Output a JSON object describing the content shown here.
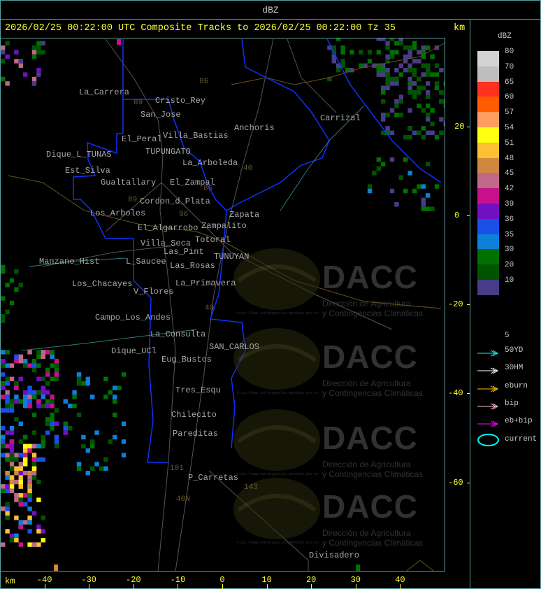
{
  "window_title": "dBZ",
  "header": {
    "title": "2026/02/25 00:22:00 UTC Composite Tracks to 2026/02/25 00:22:00 Tz 35",
    "unit_top": "km",
    "unit_bottom": "km"
  },
  "axes": {
    "x_ticks": [
      "-40",
      "-30",
      "-20",
      "-10",
      "0",
      "10",
      "20",
      "30",
      "40"
    ],
    "y_ticks": [
      "20",
      "0",
      "-20",
      "-40",
      "-60"
    ]
  },
  "legend": {
    "title": "dBZ",
    "scale": [
      {
        "label": "80",
        "color": "#d3d3d3"
      },
      {
        "label": "70",
        "color": "#bebebe"
      },
      {
        "label": "65",
        "color": "#ff3020"
      },
      {
        "label": "60",
        "color": "#ff5c00"
      },
      {
        "label": "57",
        "color": "#ff9c60"
      },
      {
        "label": "54",
        "color": "#ffff10"
      },
      {
        "label": "51",
        "color": "#fcc030"
      },
      {
        "label": "48",
        "color": "#d08840"
      },
      {
        "label": "45",
        "color": "#c06888"
      },
      {
        "label": "42",
        "color": "#c8108c"
      },
      {
        "label": "39",
        "color": "#7010c0"
      },
      {
        "label": "36",
        "color": "#1850e8"
      },
      {
        "label": "35",
        "color": "#0c80d8"
      },
      {
        "label": "30",
        "color": "#007000"
      },
      {
        "label": "20",
        "color": "#005400"
      },
      {
        "label": "10",
        "color": "#483c88"
      }
    ],
    "bottom_label": "5",
    "tracks": [
      {
        "label": "50YD",
        "color": "#00ffff",
        "icon": "arrow-icon"
      },
      {
        "label": "30HM",
        "color": "#ffffff",
        "icon": "arrow-icon"
      },
      {
        "label": "eburn",
        "color": "#ffc000",
        "icon": "arrow-icon"
      },
      {
        "label": "bip",
        "color": "#ffc0cb",
        "icon": "arrow-icon"
      },
      {
        "label": "eb+bip",
        "color": "#ff00ff",
        "icon": "arrow-icon"
      },
      {
        "label": "current",
        "color": "#00ffff",
        "icon": "ellipse-icon"
      }
    ]
  },
  "places": [
    "La_Carrera",
    "Cristo_Rey",
    "San_Jose",
    "El_Peral",
    "Villa_Bastias",
    "TUPUNGATO",
    "Dique_L_TUNAS",
    "La_Arboleda",
    "Est_Silva",
    "Gualtallary",
    "El_Zampal",
    "Anchoris",
    "Carrizal",
    "Cordon_d_Plata",
    "Los_Arboles",
    "Zapata",
    "Zampalito",
    "El_Algarrobo",
    "Totoral",
    "Villa_Seca",
    "Las_Pint",
    "TUNUYAN",
    "Manzano_Hist",
    "L_Saucee",
    "Las_Rosas",
    "La_Primavera",
    "Los_Chacayes",
    "V_Flores",
    "Campo_Los_Andes",
    "La_Consulta",
    "SAN_CARLOS",
    "Dique_UCl",
    "Eug_Bustos",
    "Tres_Esqu",
    "Chilecito",
    "Pareditas",
    "P_Carretas",
    "Divisadero"
  ],
  "road_numbers": [
    "89",
    "86",
    "40",
    "86",
    "89",
    "96",
    "40",
    "101",
    "143",
    "40N"
  ],
  "watermark": {
    "logo": "DACC",
    "line1": "Dirección de Agricultura",
    "line2": "y Contingencias Climáticas",
    "url": "http://www.contingencias.mendoza.gov.ar"
  }
}
